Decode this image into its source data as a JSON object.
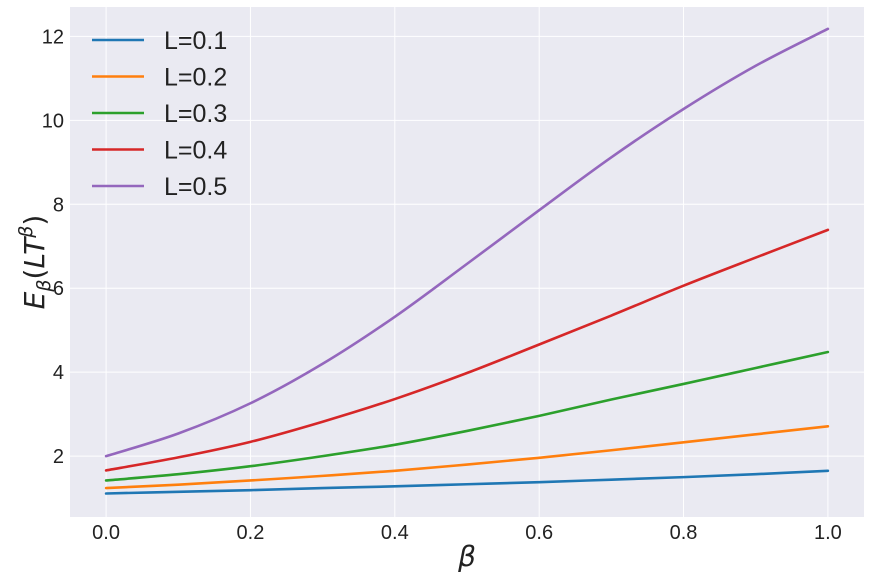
{
  "chart_data": {
    "type": "line",
    "title": "",
    "xlabel": "β",
    "ylabel": {
      "base": "E",
      "sub": "β",
      "paren_open": "(",
      "inner": "LT",
      "sup": "β",
      "paren_close": ")"
    },
    "xlim": [
      -0.05,
      1.05
    ],
    "ylim": [
      0.55,
      12.7
    ],
    "xticks": [
      0.0,
      0.2,
      0.4,
      0.6,
      0.8,
      1.0
    ],
    "xtick_labels": [
      "0.0",
      "0.2",
      "0.4",
      "0.6",
      "0.8",
      "1.0"
    ],
    "yticks": [
      2,
      4,
      6,
      8,
      10,
      12
    ],
    "ytick_labels": [
      "2",
      "4",
      "6",
      "8",
      "10",
      "12"
    ],
    "grid": true,
    "legend": "top-left",
    "x": [
      0.0,
      0.1,
      0.2,
      0.3,
      0.4,
      0.5,
      0.6,
      0.7,
      0.8,
      0.9,
      1.0
    ],
    "series": [
      {
        "name": "L=0.1",
        "color": "#1f77b4",
        "values": [
          1.11,
          1.15,
          1.19,
          1.24,
          1.28,
          1.33,
          1.38,
          1.44,
          1.5,
          1.57,
          1.65
        ]
      },
      {
        "name": "L=0.2",
        "color": "#ff7f0e",
        "values": [
          1.24,
          1.32,
          1.42,
          1.53,
          1.65,
          1.8,
          1.96,
          2.14,
          2.33,
          2.52,
          2.71
        ]
      },
      {
        "name": "L=0.3",
        "color": "#2ca02c",
        "values": [
          1.42,
          1.57,
          1.76,
          2.0,
          2.27,
          2.6,
          2.96,
          3.35,
          3.72,
          4.1,
          4.48
        ]
      },
      {
        "name": "L=0.4",
        "color": "#d62728",
        "values": [
          1.66,
          1.97,
          2.34,
          2.82,
          3.36,
          3.98,
          4.66,
          5.35,
          6.06,
          6.73,
          7.39
        ]
      },
      {
        "name": "L=0.5",
        "color": "#9467bd",
        "values": [
          2.0,
          2.54,
          3.26,
          4.2,
          5.32,
          6.58,
          7.86,
          9.12,
          10.27,
          11.3,
          12.18
        ]
      }
    ]
  }
}
